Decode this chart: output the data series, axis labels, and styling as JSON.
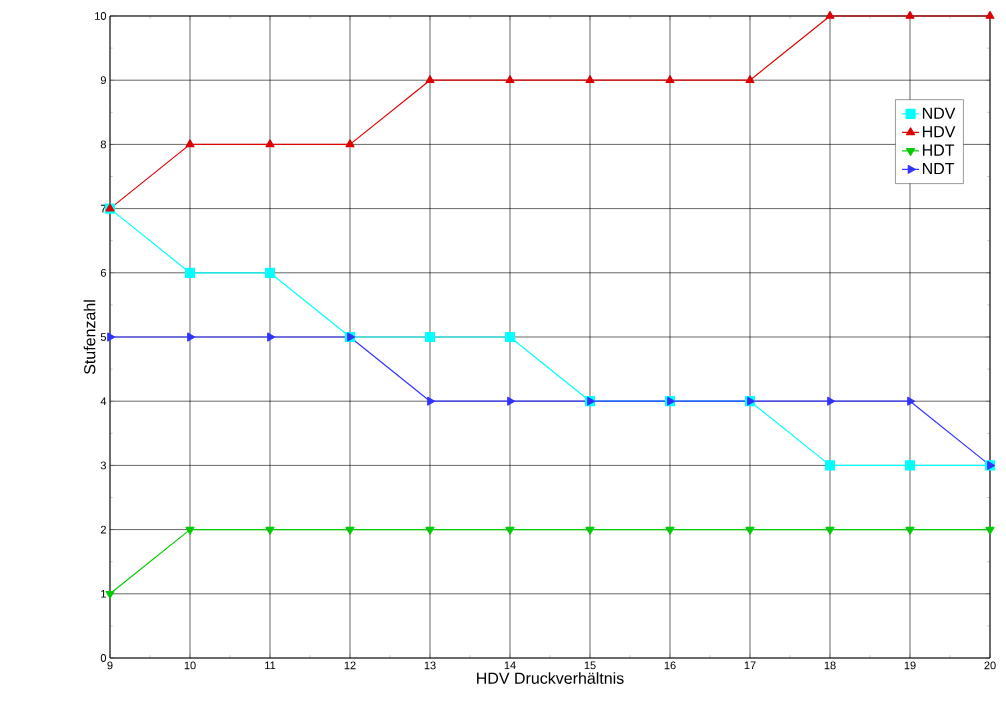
{
  "chart_data": {
    "type": "line",
    "xlabel": "HDV Druckverhältnis",
    "ylabel": "Stufenzahl",
    "x": [
      9,
      10,
      11,
      12,
      13,
      14,
      15,
      16,
      17,
      18,
      19,
      20
    ],
    "series": [
      {
        "name": "NDV",
        "color": "#00ffff",
        "marker": "square",
        "values": [
          7,
          6,
          6,
          5,
          5,
          5,
          4,
          4,
          4,
          3,
          3,
          3
        ]
      },
      {
        "name": "HDV",
        "color": "#dd0000",
        "marker": "triangle",
        "values": [
          7,
          8,
          8,
          8,
          9,
          9,
          9,
          9,
          9,
          10,
          10,
          10
        ]
      },
      {
        "name": "HDT",
        "color": "#00cc00",
        "marker": "triangle-down",
        "values": [
          1,
          2,
          2,
          2,
          2,
          2,
          2,
          2,
          2,
          2,
          2,
          2
        ]
      },
      {
        "name": "NDT",
        "color": "#3333ff",
        "marker": "triangle-right",
        "values": [
          5,
          5,
          5,
          5,
          4,
          4,
          4,
          4,
          4,
          4,
          4,
          3
        ]
      }
    ],
    "xlim": [
      9,
      20
    ],
    "xticks": [
      9,
      10,
      11,
      12,
      13,
      14,
      15,
      16,
      17,
      18,
      19,
      20
    ],
    "ylim": [
      0,
      10
    ],
    "yticks": [
      0,
      1,
      2,
      3,
      4,
      5,
      6,
      7,
      8,
      9,
      10
    ],
    "grid": true,
    "legend": "top right",
    "line_style": "solid"
  }
}
